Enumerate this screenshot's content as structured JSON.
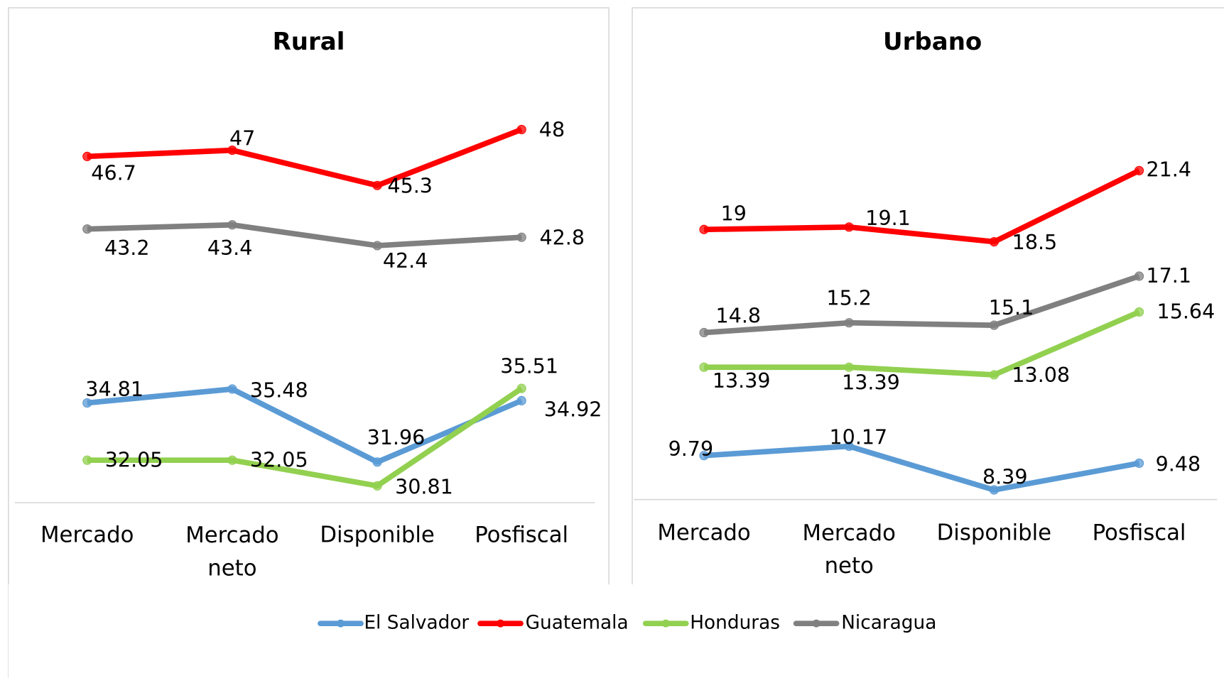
{
  "chart_data": [
    {
      "type": "line",
      "title": "Rural",
      "categories": [
        "Mercado",
        "Mercado neto",
        "Disponible",
        "Posfiscal"
      ],
      "ylim": [
        30,
        50
      ],
      "series": [
        {
          "name": "El Salvador",
          "color": "#5b9bd5",
          "values": [
            34.81,
            35.48,
            31.96,
            34.92
          ]
        },
        {
          "name": "Guatemala",
          "color": "#ff0000",
          "values": [
            46.7,
            47,
            45.3,
            48
          ]
        },
        {
          "name": "Honduras",
          "color": "#92d050",
          "values": [
            32.05,
            32.05,
            30.81,
            35.51
          ]
        },
        {
          "name": "Nicaragua",
          "color": "#808080",
          "values": [
            43.2,
            43.4,
            42.4,
            42.8
          ]
        }
      ]
    },
    {
      "type": "line",
      "title": "Urbano",
      "categories": [
        "Mercado",
        "Mercado neto",
        "Disponible",
        "Posfiscal"
      ],
      "ylim": [
        8,
        25
      ],
      "series": [
        {
          "name": "El Salvador",
          "color": "#5b9bd5",
          "values": [
            9.79,
            10.17,
            8.39,
            9.48
          ]
        },
        {
          "name": "Guatemala",
          "color": "#ff0000",
          "values": [
            19,
            19.1,
            18.5,
            21.4
          ]
        },
        {
          "name": "Honduras",
          "color": "#92d050",
          "values": [
            13.39,
            13.39,
            13.08,
            15.64
          ]
        },
        {
          "name": "Nicaragua",
          "color": "#808080",
          "values": [
            14.8,
            15.2,
            15.1,
            17.1
          ]
        }
      ]
    }
  ]
}
